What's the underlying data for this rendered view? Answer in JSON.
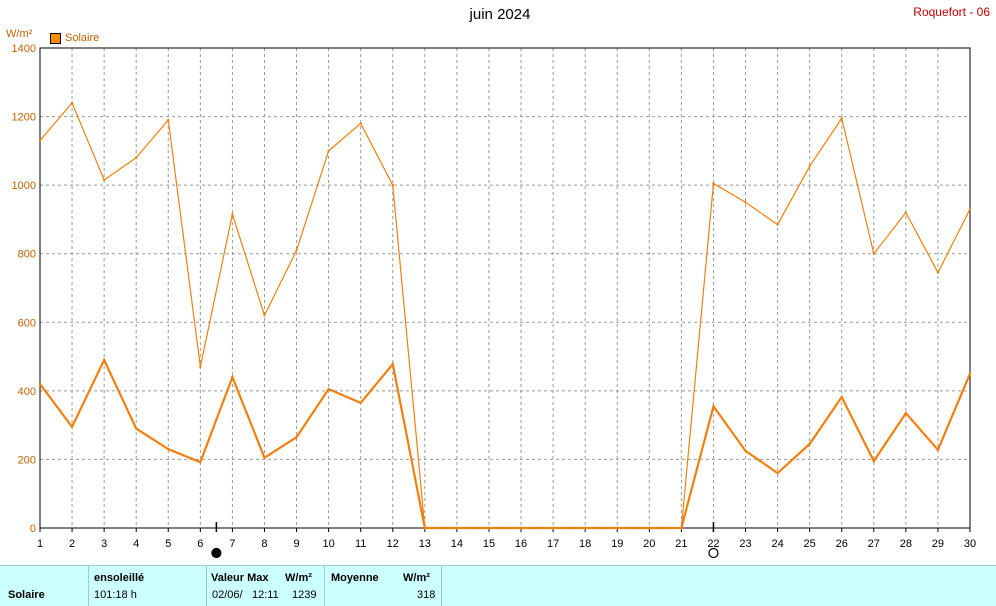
{
  "header": {
    "title": "juin 2024",
    "station": "Roquefort - 06",
    "unit": "W/m²",
    "legend_label": "Solaire"
  },
  "colors": {
    "series": "#f08010",
    "legend": "#ff8c00",
    "grid": "#999999",
    "station": "#c00000"
  },
  "chart_data": {
    "type": "line",
    "title": "juin 2024",
    "ylabel": "W/m²",
    "ylim": [
      0,
      1400
    ],
    "yticks": [
      0,
      200,
      400,
      600,
      800,
      1000,
      1200,
      1400
    ],
    "x": [
      1,
      2,
      3,
      4,
      5,
      6,
      7,
      8,
      9,
      10,
      11,
      12,
      13,
      14,
      15,
      16,
      17,
      18,
      19,
      20,
      21,
      22,
      23,
      24,
      25,
      26,
      27,
      28,
      29,
      30
    ],
    "grid": true,
    "legend": "top-left",
    "series": [
      {
        "name": "Solaire",
        "role": "max",
        "values": [
          1130,
          1240,
          1015,
          1080,
          1190,
          470,
          915,
          620,
          810,
          1100,
          1180,
          1000,
          0,
          0,
          0,
          0,
          0,
          0,
          0,
          0,
          0,
          1005,
          950,
          885,
          1055,
          1195,
          800,
          920,
          745,
          930
        ]
      },
      {
        "name": "Solaire",
        "role": "mean",
        "values": [
          420,
          295,
          490,
          290,
          230,
          192,
          440,
          205,
          265,
          405,
          365,
          478,
          0,
          0,
          0,
          0,
          0,
          0,
          0,
          0,
          0,
          355,
          225,
          160,
          245,
          382,
          195,
          335,
          228,
          450
        ]
      }
    ],
    "moon_phases": [
      {
        "day": 6.5,
        "phase": "new-moon"
      },
      {
        "day": 22,
        "phase": "full-moon"
      }
    ]
  },
  "footer": {
    "row_label": "Solaire",
    "sunshine_header": "ensoleillé",
    "sunshine_value": "101:18 h",
    "max_header": "Valeur Max",
    "max_unit": "W/m²",
    "max_date": "02/06/",
    "max_time": "12:11",
    "max_value": "1239",
    "mean_header": "Moyenne",
    "mean_unit": "W/m²",
    "mean_value": "318"
  }
}
